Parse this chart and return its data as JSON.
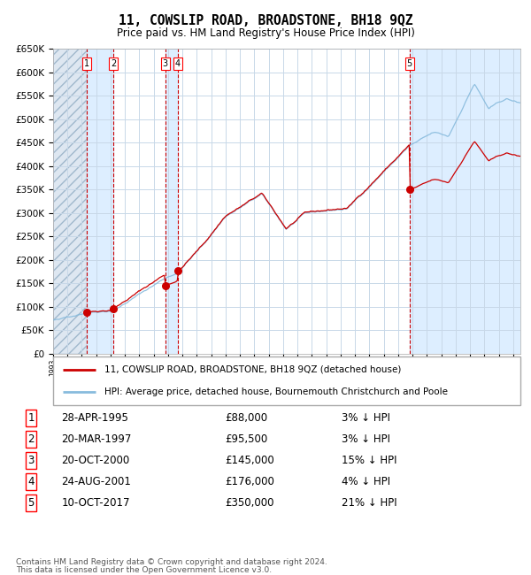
{
  "title": "11, COWSLIP ROAD, BROADSTONE, BH18 9QZ",
  "subtitle": "Price paid vs. HM Land Registry's House Price Index (HPI)",
  "legend_red": "11, COWSLIP ROAD, BROADSTONE, BH18 9QZ (detached house)",
  "legend_blue": "HPI: Average price, detached house, Bournemouth Christchurch and Poole",
  "footnote1": "Contains HM Land Registry data © Crown copyright and database right 2024.",
  "footnote2": "This data is licensed under the Open Government Licence v3.0.",
  "sales": [
    {
      "num": 1,
      "date": "28-APR-1995",
      "price": 88000,
      "pct": "3% ↓ HPI",
      "year": 1995.32
    },
    {
      "num": 2,
      "date": "20-MAR-1997",
      "price": 95500,
      "pct": "3% ↓ HPI",
      "year": 1997.21
    },
    {
      "num": 3,
      "date": "20-OCT-2000",
      "price": 145000,
      "pct": "15% ↓ HPI",
      "year": 2000.8
    },
    {
      "num": 4,
      "date": "24-AUG-2001",
      "price": 176000,
      "pct": "4% ↓ HPI",
      "year": 2001.65
    },
    {
      "num": 5,
      "date": "10-OCT-2017",
      "price": 350000,
      "pct": "21% ↓ HPI",
      "year": 2017.78
    }
  ],
  "ylim": [
    0,
    650000
  ],
  "xlim_start": 1993.0,
  "xlim_end": 2025.5,
  "background_color": "#ffffff",
  "grid_color": "#c8d8e8",
  "shade_color": "#ddeeff",
  "red_color": "#cc0000",
  "blue_color": "#88bbdd",
  "vline_color": "#cc0000",
  "hatch_color": "#c8d8e8"
}
